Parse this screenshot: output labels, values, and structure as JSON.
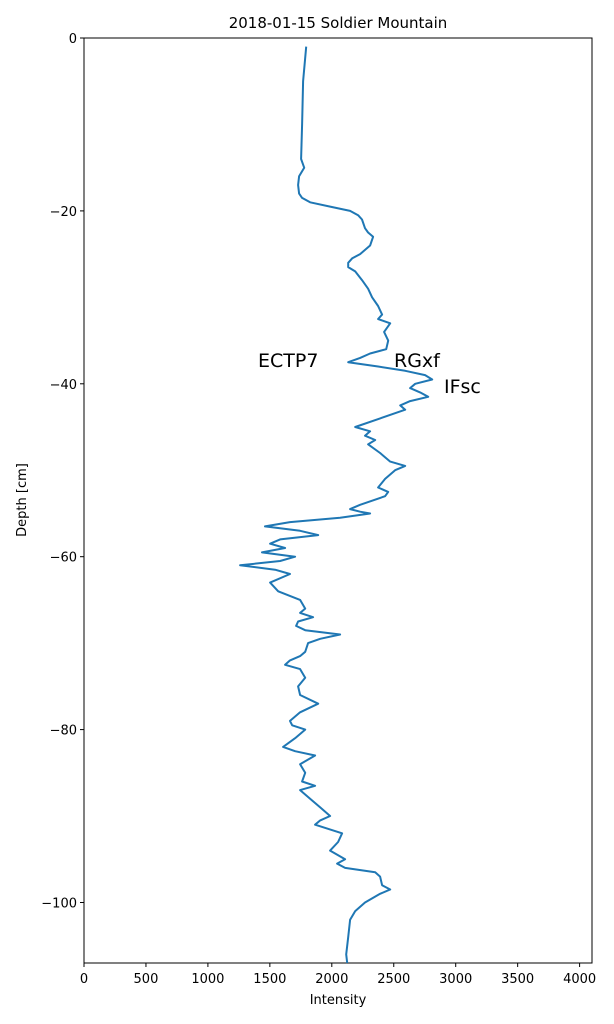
{
  "chart_data": {
    "type": "line",
    "title": "2018-01-15 Soldier Mountain",
    "x_label": "Intensity",
    "y_label": "Depth [cm]",
    "annotations": [
      "ECTP7",
      "RGxf",
      "IFsc"
    ],
    "xlim": [
      0,
      4100
    ],
    "ylim": [
      -107,
      0
    ],
    "xticks": [
      0,
      500,
      1000,
      1500,
      2000,
      2500,
      3000,
      3500,
      4000
    ],
    "yticks": [
      {
        "value": -100,
        "label": "−100"
      },
      {
        "value": -80,
        "label": "−80"
      },
      {
        "value": -60,
        "label": "−60"
      },
      {
        "value": -40,
        "label": "−40"
      },
      {
        "value": -20,
        "label": "−20"
      },
      0
    ],
    "x": [
      1793,
      1768,
      1760,
      1752,
      1777,
      1736,
      1728,
      1736,
      1760,
      1825,
      1986,
      2148,
      2212,
      2244,
      2268,
      2293,
      2333,
      2309,
      2228,
      2164,
      2132,
      2132,
      2189,
      2244,
      2293,
      2325,
      2374,
      2406,
      2374,
      2471,
      2422,
      2455,
      2439,
      2309,
      2228,
      2132,
      2374,
      2592,
      2753,
      2810,
      2673,
      2632,
      2713,
      2778,
      2632,
      2552,
      2592,
      2390,
      2189,
      2309,
      2268,
      2350,
      2293,
      2390,
      2471,
      2592,
      2511,
      2430,
      2374,
      2455,
      2430,
      2228,
      2148,
      2228,
      2309,
      2067,
      1663,
      1461,
      1744,
      1890,
      1583,
      1502,
      1623,
      1437,
      1704,
      1583,
      1260,
      1542,
      1663,
      1502,
      1567,
      1744,
      1785,
      1744,
      1849,
      1728,
      1712,
      1785,
      2067,
      1906,
      1809,
      1785,
      1744,
      1663,
      1623,
      1744,
      1785,
      1728,
      1744,
      1890,
      1744,
      1663,
      1680,
      1785,
      1704,
      1607,
      1704,
      1865,
      1744,
      1785,
      1760,
      1865,
      1744,
      1825,
      1906,
      1986,
      1906,
      1865,
      2083,
      2051,
      1986,
      2107,
      2043,
      2107,
      2350,
      2390,
      2406,
      2471,
      2390,
      2268,
      2189,
      2148,
      2132,
      2116,
      2124
    ],
    "series": [
      {
        "color": "#1f77b4",
        "values": [
          -1,
          -5,
          -10,
          -14,
          -15,
          -16,
          -17,
          -18,
          -18.5,
          -19,
          -19.5,
          -20,
          -20.5,
          -21,
          -22,
          -22.5,
          -23,
          -24,
          -25,
          -25.5,
          -26,
          -26.5,
          -27,
          -28,
          -29,
          -30,
          -31,
          -32,
          -32.5,
          -33,
          -34,
          -35,
          -36,
          -36.5,
          -37,
          -37.5,
          -38,
          -38.5,
          -39,
          -39.5,
          -40,
          -40.5,
          -41,
          -41.5,
          -42,
          -42.5,
          -43,
          -44,
          -45,
          -45.5,
          -46,
          -46.5,
          -47,
          -48,
          -49,
          -49.5,
          -50,
          -51,
          -52,
          -52.5,
          -53,
          -54,
          -54.5,
          -54.8,
          -55,
          -55.5,
          -56,
          -56.5,
          -57,
          -57.5,
          -58,
          -58.5,
          -59,
          -59.5,
          -60,
          -60.5,
          -61,
          -61.5,
          -62,
          -63,
          -64,
          -65,
          -66,
          -66.5,
          -67,
          -67.5,
          -68,
          -68.5,
          -69,
          -69.5,
          -70,
          -71,
          -71.5,
          -72,
          -72.5,
          -73,
          -74,
          -75,
          -76,
          -77,
          -78,
          -79,
          -79.5,
          -80,
          -81,
          -82,
          -82.5,
          -83,
          -84,
          -85,
          -86,
          -86.5,
          -87,
          -88,
          -89,
          -90,
          -90.5,
          -91,
          -92,
          -93,
          -94,
          -95,
          -95.5,
          -96,
          -96.5,
          -97,
          -98,
          -98.5,
          -99,
          -100,
          -101,
          -102,
          -104,
          -106,
          -107
        ]
      }
    ]
  }
}
